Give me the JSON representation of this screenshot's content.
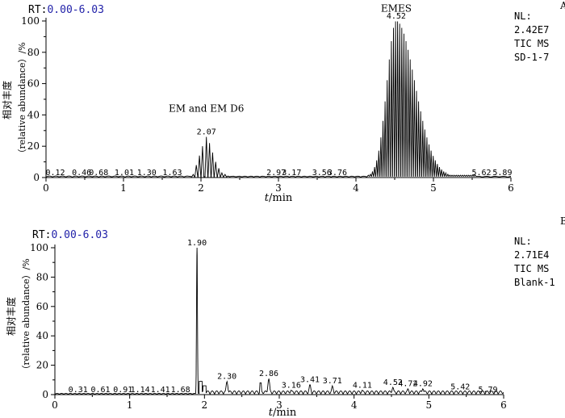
{
  "chart_data": [
    {
      "type": "line",
      "panel_label": "A",
      "rt_label": "RT:",
      "rt_range": "0.00-6.03",
      "xlabel_italic": "t",
      "xlabel_unit": "/min",
      "ylabel_line1": "相对丰度",
      "ylabel_line2": "（relative abundance）/%",
      "xlim": [
        0,
        6
      ],
      "ylim": [
        0,
        100
      ],
      "xticks": [
        "0",
        "1",
        "2",
        "3",
        "4",
        "5",
        "6"
      ],
      "yticks": [
        "0",
        "20",
        "40",
        "60",
        "80",
        "100"
      ],
      "info": [
        "NL:",
        "2.42E7",
        "TIC MS",
        "SD-1-7"
      ],
      "annotations": [
        {
          "text": "EM and EM D6",
          "x": 2.07,
          "y": 42
        },
        {
          "text": "EMES",
          "x": 4.52,
          "y": 106
        }
      ],
      "peaks": [
        {
          "rt": 2.07,
          "label": "2.07",
          "y": 26
        },
        {
          "rt": 4.52,
          "label": "4.52",
          "y": 100
        }
      ],
      "baseline_labels": [
        {
          "rt": 0.12,
          "label": "0.12"
        },
        {
          "rt": 0.46,
          "label": "0.46"
        },
        {
          "rt": 0.68,
          "label": "0.68"
        },
        {
          "rt": 1.01,
          "label": "1.01"
        },
        {
          "rt": 1.3,
          "label": "1.30"
        },
        {
          "rt": 1.63,
          "label": "1.63"
        },
        {
          "rt": 2.97,
          "label": "2.97"
        },
        {
          "rt": 3.17,
          "label": "3.17"
        },
        {
          "rt": 3.56,
          "label": "3.56"
        },
        {
          "rt": 3.76,
          "label": "3.76"
        },
        {
          "rt": 5.62,
          "label": "5.62"
        },
        {
          "rt": 5.89,
          "label": "5.89"
        }
      ]
    },
    {
      "type": "line",
      "panel_label": "B",
      "rt_label": "RT:",
      "rt_range": "0.00-6.03",
      "xlabel_italic": "t",
      "xlabel_unit": "/min",
      "ylabel_line1": "相对丰度",
      "ylabel_line2": "（relative abundance）/%",
      "xlim": [
        0,
        6
      ],
      "ylim": [
        0,
        100
      ],
      "xticks": [
        "0",
        "1",
        "2",
        "3",
        "4",
        "5",
        "6"
      ],
      "yticks": [
        "0",
        "20",
        "40",
        "60",
        "80",
        "100"
      ],
      "info": [
        "NL:",
        "2.71E4",
        "TIC MS",
        "Blank-1"
      ],
      "peaks": [
        {
          "rt": 1.9,
          "label": "1.90",
          "y": 100
        },
        {
          "rt": 2.3,
          "label": "2.30",
          "y": 9
        },
        {
          "rt": 2.86,
          "label": "2.86",
          "y": 11
        },
        {
          "rt": 3.16,
          "label": "3.16",
          "y": 3
        },
        {
          "rt": 3.41,
          "label": "3.41",
          "y": 7
        },
        {
          "rt": 3.71,
          "label": "3.71",
          "y": 6
        },
        {
          "rt": 4.11,
          "label": "4.11",
          "y": 3
        },
        {
          "rt": 4.52,
          "label": "4.52",
          "y": 5
        },
        {
          "rt": 4.72,
          "label": "4.72",
          "y": 4
        },
        {
          "rt": 4.92,
          "label": "4.92",
          "y": 4
        },
        {
          "rt": 5.42,
          "label": "5.42",
          "y": 2
        }
      ],
      "baseline_labels": [
        {
          "rt": 0.31,
          "label": "0.31"
        },
        {
          "rt": 0.61,
          "label": "0.61"
        },
        {
          "rt": 0.91,
          "label": "0.91"
        },
        {
          "rt": 1.14,
          "label": "1.14"
        },
        {
          "rt": 1.41,
          "label": "1.41"
        },
        {
          "rt": 1.68,
          "label": "1.68"
        },
        {
          "rt": 5.79,
          "label": "5.79"
        }
      ]
    }
  ],
  "colors": {
    "axis": "#000000",
    "trace": "#000000",
    "rt_value": "#1f1fa8"
  }
}
